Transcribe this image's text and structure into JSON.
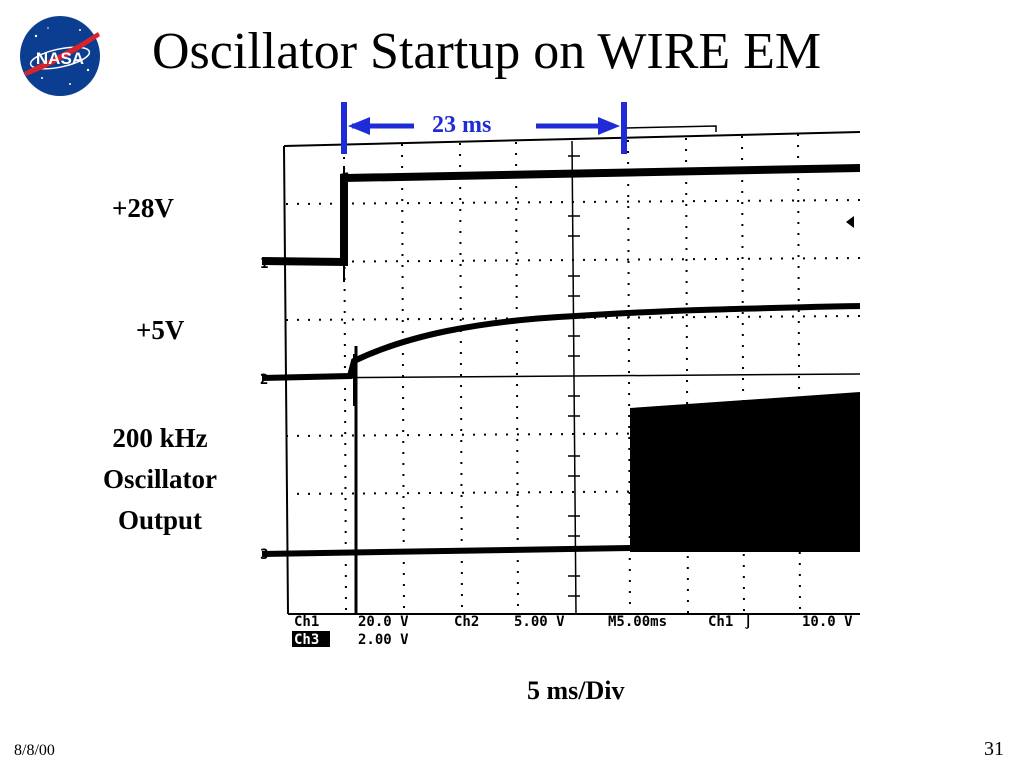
{
  "slide": {
    "title": "Oscillator Startup on WIRE EM",
    "logo_text": "NASA",
    "date": "8/8/00",
    "page_number": "31"
  },
  "labels": {
    "v28": "+28V",
    "v5": "+5V",
    "osc_line1": "200 kHz",
    "osc_line2": "Oscillator",
    "osc_line3": "Output",
    "timebase": "5 ms/Div",
    "measurement": "23 ms"
  },
  "scope": {
    "channel_markers": [
      "1",
      "2",
      "3"
    ],
    "readout": {
      "ch1_name": "Ch1",
      "ch1_scale": "20.0 V",
      "ch2_name": "Ch2",
      "ch2_scale": "5.00 V",
      "ch3_name": "Ch3",
      "ch3_scale": "2.00 V",
      "time_setting": "M5.00ms",
      "trigger_source": "Ch1",
      "trigger_level": "10.0 V"
    },
    "colors": {
      "trace": "#000000",
      "marker": "#1f2bd6",
      "logo_blue": "#0b3d91",
      "logo_red": "#d6232c"
    }
  }
}
